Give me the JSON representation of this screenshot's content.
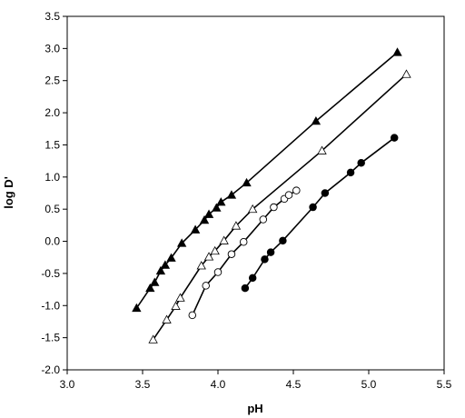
{
  "chart_data": {
    "type": "scatter",
    "title": "",
    "xlabel": "pH",
    "ylabel": "log D'",
    "xlim": [
      3.0,
      5.5
    ],
    "ylim": [
      -2.0,
      3.5
    ],
    "x_ticks": [
      "3.0",
      "3.5",
      "4.0",
      "4.5",
      "5.0",
      "5.5"
    ],
    "y_ticks": [
      "-2.0",
      "-1.5",
      "-1.0",
      "-0.5",
      "0.0",
      "0.5",
      "1.0",
      "1.5",
      "2.0",
      "2.5",
      "3.0",
      "3.5"
    ],
    "grid": false,
    "legend": "none",
    "series": [
      {
        "marker": "filled-triangle",
        "color": "#000000",
        "points": [
          [
            3.46,
            -1.04
          ],
          [
            3.55,
            -0.73
          ],
          [
            3.58,
            -0.64
          ],
          [
            3.62,
            -0.46
          ],
          [
            3.65,
            -0.37
          ],
          [
            3.69,
            -0.26
          ],
          [
            3.76,
            -0.03
          ],
          [
            3.85,
            0.18
          ],
          [
            3.91,
            0.33
          ],
          [
            3.94,
            0.42
          ],
          [
            3.99,
            0.52
          ],
          [
            4.02,
            0.61
          ],
          [
            4.09,
            0.72
          ],
          [
            4.19,
            0.91
          ],
          [
            4.65,
            1.87
          ],
          [
            5.19,
            2.94
          ]
        ]
      },
      {
        "marker": "open-triangle",
        "color": "#000000",
        "points": [
          [
            3.57,
            -1.53
          ],
          [
            3.66,
            -1.22
          ],
          [
            3.72,
            -1.01
          ],
          [
            3.75,
            -0.88
          ],
          [
            3.89,
            -0.38
          ],
          [
            3.94,
            -0.24
          ],
          [
            3.98,
            -0.15
          ],
          [
            4.04,
            0.01
          ],
          [
            4.12,
            0.24
          ],
          [
            4.23,
            0.5
          ],
          [
            4.69,
            1.41
          ],
          [
            5.25,
            2.6
          ]
        ]
      },
      {
        "marker": "open-circle",
        "color": "#000000",
        "points": [
          [
            3.83,
            -1.15
          ],
          [
            3.92,
            -0.69
          ],
          [
            4.0,
            -0.48
          ],
          [
            4.09,
            -0.2
          ],
          [
            4.17,
            -0.01
          ],
          [
            4.3,
            0.34
          ],
          [
            4.37,
            0.53
          ],
          [
            4.44,
            0.66
          ],
          [
            4.47,
            0.72
          ],
          [
            4.52,
            0.79
          ]
        ]
      },
      {
        "marker": "filled-circle",
        "color": "#000000",
        "points": [
          [
            4.18,
            -0.73
          ],
          [
            4.23,
            -0.57
          ],
          [
            4.31,
            -0.28
          ],
          [
            4.35,
            -0.17
          ],
          [
            4.43,
            0.01
          ],
          [
            4.63,
            0.53
          ],
          [
            4.71,
            0.75
          ],
          [
            4.88,
            1.07
          ],
          [
            4.95,
            1.22
          ],
          [
            5.17,
            1.61
          ]
        ]
      }
    ]
  }
}
